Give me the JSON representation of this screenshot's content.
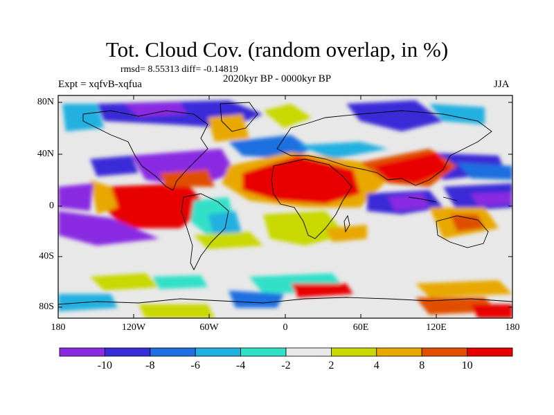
{
  "title": "Tot. Cloud Cov. (random overlap, in %)",
  "stats_line": "rmsd= 8.55313 diff= -0.14819",
  "subtitle": "2020kyr BP - 0000kyr BP",
  "experiment_label": "Expt = xqfvB-xqfua",
  "season_label": "JJA",
  "lat_axis": [
    "80N",
    "40N",
    "0",
    "40S",
    "80S"
  ],
  "lon_axis": [
    "180",
    "120W",
    "60W",
    "0",
    "60E",
    "120E",
    "180"
  ],
  "colorbar": {
    "colors": [
      "#8a2be2",
      "#3a2bd8",
      "#1e6fe0",
      "#20b0e0",
      "#30e0c8",
      "#e8e8e8",
      "#c8d800",
      "#e8a800",
      "#e05000",
      "#e80000"
    ],
    "labels": [
      "-10",
      "-8",
      "-6",
      "-4",
      "-2",
      "2",
      "4",
      "8",
      "10"
    ]
  }
}
